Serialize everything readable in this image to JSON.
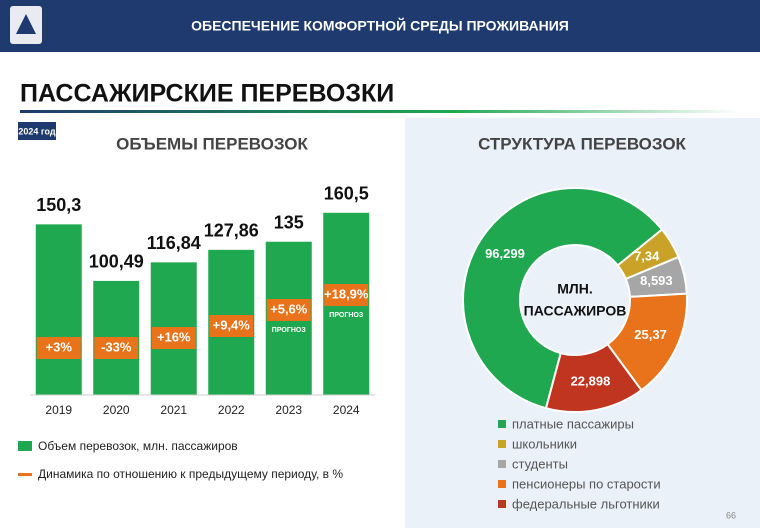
{
  "header": "ОБЕСПЕЧЕНИЕ КОМФОРТНОЙ СРЕДЫ ПРОЖИВАНИЯ",
  "title": "ПАССАЖИРСКИЕ ПЕРЕВОЗКИ",
  "year_badge": "2024 год",
  "page_number": "66",
  "chart_data": [
    {
      "type": "bar",
      "title": "ОБЪЕМЫ ПЕРЕВОЗОК",
      "categories": [
        "2019",
        "2020",
        "2021",
        "2022",
        "2023",
        "2024"
      ],
      "ylim": [
        0,
        170
      ],
      "series": [
        {
          "name": "Объем перевозок, млн. пассажиров",
          "color": "#1fa84f",
          "values": [
            150.3,
            100.49,
            116.84,
            127.86,
            135,
            160.5
          ],
          "value_labels": [
            "150,3",
            "100,49",
            "116,84",
            "127,86",
            "135",
            "160,5"
          ]
        },
        {
          "name": "Динамика по отношению к предыдущему периоду, в %",
          "color": "#e8731a",
          "values": [
            3,
            -33,
            16,
            9.4,
            5.6,
            18.9
          ],
          "value_labels": [
            "+3%",
            "-33%",
            "+16%",
            "+9,4%",
            "+5,6%",
            "+18,9%"
          ]
        }
      ],
      "notes": [
        null,
        null,
        null,
        null,
        "ПРОГНОЗ",
        "ПРОГНОЗ"
      ]
    },
    {
      "type": "pie",
      "title": "СТРУКТУРА ПЕРЕВОЗОК",
      "center_label": [
        "МЛН.",
        "ПАССАЖИРОВ"
      ],
      "categories": [
        "платные пассажиры",
        "школьники",
        "студенты",
        "пенсионеры по старости",
        "федеральные льготники"
      ],
      "values": [
        96.299,
        7.34,
        8.593,
        25.37,
        22.898
      ],
      "value_labels": [
        "96,299",
        "7,34",
        "8,593",
        "25,37",
        "22,898"
      ],
      "colors": [
        "#1fa84f",
        "#c9a227",
        "#a6a6a6",
        "#e8731a",
        "#c0351f"
      ]
    }
  ]
}
